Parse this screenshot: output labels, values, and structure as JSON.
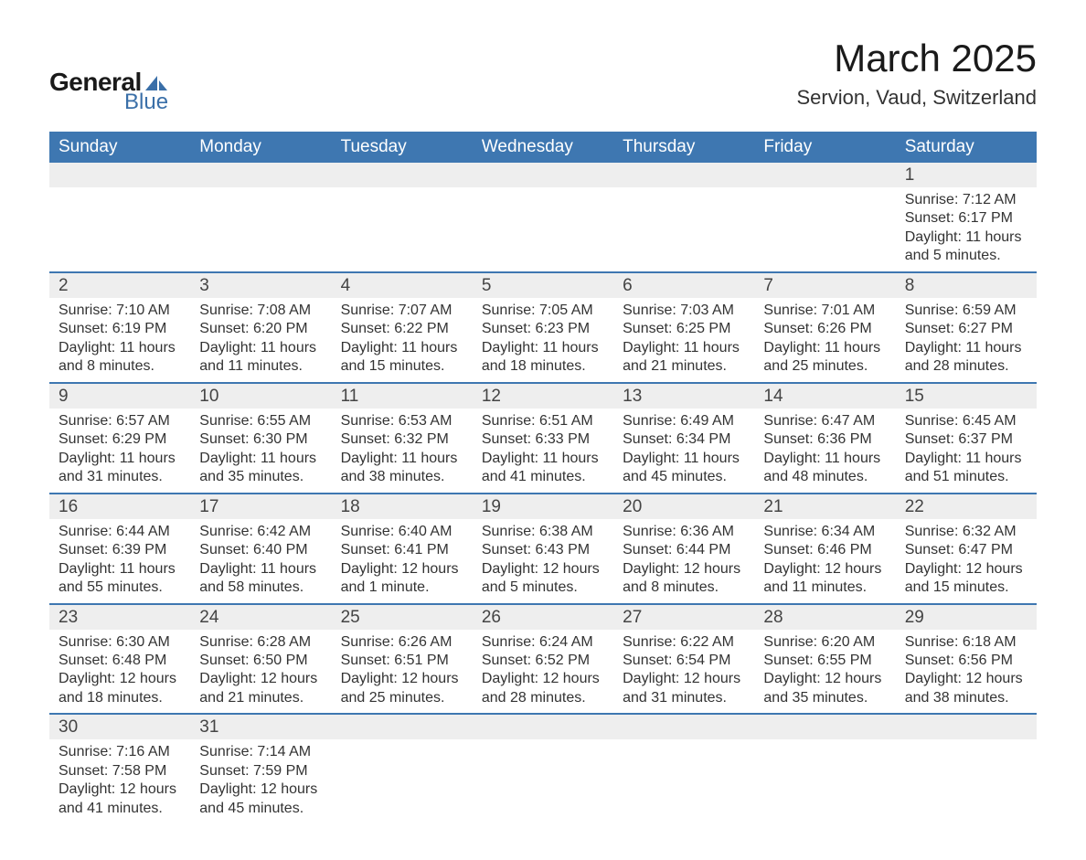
{
  "logo": {
    "text1": "General",
    "text2": "Blue",
    "accent_color": "#3a6fa8"
  },
  "title": "March 2025",
  "location": "Servion, Vaud, Switzerland",
  "colors": {
    "header_bg": "#3e77b1",
    "header_text": "#ffffff",
    "daynum_bg": "#eeeeee",
    "row_border": "#3e77b1",
    "body_text": "#333333"
  },
  "day_names": [
    "Sunday",
    "Monday",
    "Tuesday",
    "Wednesday",
    "Thursday",
    "Friday",
    "Saturday"
  ],
  "weeks": [
    [
      {
        "n": "",
        "lines": []
      },
      {
        "n": "",
        "lines": []
      },
      {
        "n": "",
        "lines": []
      },
      {
        "n": "",
        "lines": []
      },
      {
        "n": "",
        "lines": []
      },
      {
        "n": "",
        "lines": []
      },
      {
        "n": "1",
        "lines": [
          "Sunrise: 7:12 AM",
          "Sunset: 6:17 PM",
          "Daylight: 11 hours and 5 minutes."
        ]
      }
    ],
    [
      {
        "n": "2",
        "lines": [
          "Sunrise: 7:10 AM",
          "Sunset: 6:19 PM",
          "Daylight: 11 hours and 8 minutes."
        ]
      },
      {
        "n": "3",
        "lines": [
          "Sunrise: 7:08 AM",
          "Sunset: 6:20 PM",
          "Daylight: 11 hours and 11 minutes."
        ]
      },
      {
        "n": "4",
        "lines": [
          "Sunrise: 7:07 AM",
          "Sunset: 6:22 PM",
          "Daylight: 11 hours and 15 minutes."
        ]
      },
      {
        "n": "5",
        "lines": [
          "Sunrise: 7:05 AM",
          "Sunset: 6:23 PM",
          "Daylight: 11 hours and 18 minutes."
        ]
      },
      {
        "n": "6",
        "lines": [
          "Sunrise: 7:03 AM",
          "Sunset: 6:25 PM",
          "Daylight: 11 hours and 21 minutes."
        ]
      },
      {
        "n": "7",
        "lines": [
          "Sunrise: 7:01 AM",
          "Sunset: 6:26 PM",
          "Daylight: 11 hours and 25 minutes."
        ]
      },
      {
        "n": "8",
        "lines": [
          "Sunrise: 6:59 AM",
          "Sunset: 6:27 PM",
          "Daylight: 11 hours and 28 minutes."
        ]
      }
    ],
    [
      {
        "n": "9",
        "lines": [
          "Sunrise: 6:57 AM",
          "Sunset: 6:29 PM",
          "Daylight: 11 hours and 31 minutes."
        ]
      },
      {
        "n": "10",
        "lines": [
          "Sunrise: 6:55 AM",
          "Sunset: 6:30 PM",
          "Daylight: 11 hours and 35 minutes."
        ]
      },
      {
        "n": "11",
        "lines": [
          "Sunrise: 6:53 AM",
          "Sunset: 6:32 PM",
          "Daylight: 11 hours and 38 minutes."
        ]
      },
      {
        "n": "12",
        "lines": [
          "Sunrise: 6:51 AM",
          "Sunset: 6:33 PM",
          "Daylight: 11 hours and 41 minutes."
        ]
      },
      {
        "n": "13",
        "lines": [
          "Sunrise: 6:49 AM",
          "Sunset: 6:34 PM",
          "Daylight: 11 hours and 45 minutes."
        ]
      },
      {
        "n": "14",
        "lines": [
          "Sunrise: 6:47 AM",
          "Sunset: 6:36 PM",
          "Daylight: 11 hours and 48 minutes."
        ]
      },
      {
        "n": "15",
        "lines": [
          "Sunrise: 6:45 AM",
          "Sunset: 6:37 PM",
          "Daylight: 11 hours and 51 minutes."
        ]
      }
    ],
    [
      {
        "n": "16",
        "lines": [
          "Sunrise: 6:44 AM",
          "Sunset: 6:39 PM",
          "Daylight: 11 hours and 55 minutes."
        ]
      },
      {
        "n": "17",
        "lines": [
          "Sunrise: 6:42 AM",
          "Sunset: 6:40 PM",
          "Daylight: 11 hours and 58 minutes."
        ]
      },
      {
        "n": "18",
        "lines": [
          "Sunrise: 6:40 AM",
          "Sunset: 6:41 PM",
          "Daylight: 12 hours and 1 minute."
        ]
      },
      {
        "n": "19",
        "lines": [
          "Sunrise: 6:38 AM",
          "Sunset: 6:43 PM",
          "Daylight: 12 hours and 5 minutes."
        ]
      },
      {
        "n": "20",
        "lines": [
          "Sunrise: 6:36 AM",
          "Sunset: 6:44 PM",
          "Daylight: 12 hours and 8 minutes."
        ]
      },
      {
        "n": "21",
        "lines": [
          "Sunrise: 6:34 AM",
          "Sunset: 6:46 PM",
          "Daylight: 12 hours and 11 minutes."
        ]
      },
      {
        "n": "22",
        "lines": [
          "Sunrise: 6:32 AM",
          "Sunset: 6:47 PM",
          "Daylight: 12 hours and 15 minutes."
        ]
      }
    ],
    [
      {
        "n": "23",
        "lines": [
          "Sunrise: 6:30 AM",
          "Sunset: 6:48 PM",
          "Daylight: 12 hours and 18 minutes."
        ]
      },
      {
        "n": "24",
        "lines": [
          "Sunrise: 6:28 AM",
          "Sunset: 6:50 PM",
          "Daylight: 12 hours and 21 minutes."
        ]
      },
      {
        "n": "25",
        "lines": [
          "Sunrise: 6:26 AM",
          "Sunset: 6:51 PM",
          "Daylight: 12 hours and 25 minutes."
        ]
      },
      {
        "n": "26",
        "lines": [
          "Sunrise: 6:24 AM",
          "Sunset: 6:52 PM",
          "Daylight: 12 hours and 28 minutes."
        ]
      },
      {
        "n": "27",
        "lines": [
          "Sunrise: 6:22 AM",
          "Sunset: 6:54 PM",
          "Daylight: 12 hours and 31 minutes."
        ]
      },
      {
        "n": "28",
        "lines": [
          "Sunrise: 6:20 AM",
          "Sunset: 6:55 PM",
          "Daylight: 12 hours and 35 minutes."
        ]
      },
      {
        "n": "29",
        "lines": [
          "Sunrise: 6:18 AM",
          "Sunset: 6:56 PM",
          "Daylight: 12 hours and 38 minutes."
        ]
      }
    ],
    [
      {
        "n": "30",
        "lines": [
          "Sunrise: 7:16 AM",
          "Sunset: 7:58 PM",
          "Daylight: 12 hours and 41 minutes."
        ]
      },
      {
        "n": "31",
        "lines": [
          "Sunrise: 7:14 AM",
          "Sunset: 7:59 PM",
          "Daylight: 12 hours and 45 minutes."
        ]
      },
      {
        "n": "",
        "lines": []
      },
      {
        "n": "",
        "lines": []
      },
      {
        "n": "",
        "lines": []
      },
      {
        "n": "",
        "lines": []
      },
      {
        "n": "",
        "lines": []
      }
    ]
  ]
}
